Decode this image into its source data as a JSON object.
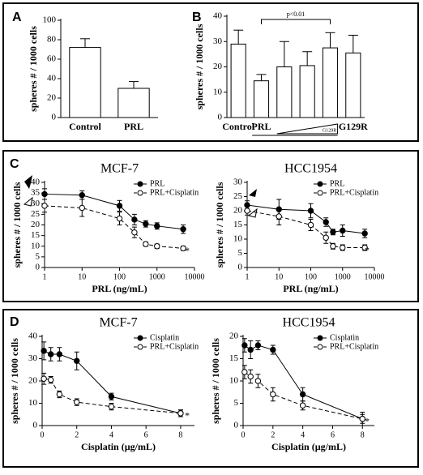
{
  "chart_data": [
    {
      "type": "bar",
      "panel": "A",
      "ylabel": "spheres # / 1000 cells",
      "categories": [
        "Control",
        "PRL"
      ],
      "values": [
        72,
        30
      ],
      "errors": [
        9,
        7
      ],
      "color": "#ffffff",
      "ylim": [
        0,
        100
      ],
      "yticks": [
        0,
        20,
        40,
        60,
        80,
        100
      ]
    },
    {
      "type": "bar",
      "panel": "B",
      "ylabel": "spheres # / 1000 cells",
      "categories": [
        "Control",
        "PRL",
        null,
        null,
        null,
        "G129R"
      ],
      "values": [
        29,
        14.5,
        20,
        20.5,
        27.5,
        25.5
      ],
      "errors": [
        5.5,
        2.5,
        10,
        5.5,
        6,
        7
      ],
      "color": "#ffffff",
      "ylim": [
        0,
        40
      ],
      "yticks": [
        0,
        10,
        20,
        30,
        40
      ],
      "annotation": "p<0.01",
      "gradient_label": "G129R"
    },
    {
      "type": "line",
      "panel": "C",
      "title": "MCF-7",
      "ylabel": "spheres # / 1000 cells",
      "xlabel": "PRL (ng/mL)",
      "log_x": true,
      "x": [
        1,
        10,
        100,
        250,
        500,
        1000,
        5000
      ],
      "series": [
        {
          "name": "PRL",
          "color": "#000000",
          "marker": "filled",
          "dashed": false,
          "values": [
            34.5,
            34,
            29,
            22.5,
            20.5,
            19.5,
            18
          ],
          "errors": [
            2.5,
            2,
            2.5,
            2.5,
            1.5,
            1.5,
            2
          ]
        },
        {
          "name": "PRL+Cisplatin",
          "color": "#000000",
          "marker": "open",
          "dashed": true,
          "values": [
            29,
            28,
            23,
            16.5,
            11,
            10,
            9
          ],
          "errors": [
            3,
            4,
            3,
            2.5,
            1,
            1,
            1
          ]
        }
      ],
      "xlim": [
        1,
        10000
      ],
      "xticks": [
        1,
        10,
        100,
        1000,
        10000
      ],
      "ylim": [
        0,
        40
      ],
      "yticks": [
        0,
        5,
        10,
        15,
        20,
        25,
        30,
        35,
        40
      ],
      "annotation": "*"
    },
    {
      "type": "line",
      "title": "HCC1954",
      "ylabel": "spheres # / 1000 cells",
      "xlabel": "PRL (ng/mL)",
      "log_x": true,
      "x": [
        1,
        10,
        100,
        300,
        500,
        1000,
        5000
      ],
      "series": [
        {
          "name": "PRL",
          "color": "#000000",
          "marker": "filled",
          "dashed": false,
          "values": [
            22,
            20.5,
            20,
            16,
            12.5,
            13,
            12
          ],
          "errors": [
            1.5,
            3.5,
            2.5,
            1.5,
            1,
            2,
            1.5
          ]
        },
        {
          "name": "PRL+Cisplatin",
          "color": "#000000",
          "marker": "open",
          "dashed": true,
          "values": [
            20,
            18,
            15,
            10.5,
            7.5,
            7,
            7
          ],
          "errors": [
            1.5,
            3,
            2,
            2,
            1,
            1,
            1
          ]
        }
      ],
      "xlim": [
        1,
        10000
      ],
      "xticks": [
        1,
        10,
        100,
        1000,
        10000
      ],
      "ylim": [
        0,
        30
      ],
      "yticks": [
        0,
        5,
        10,
        15,
        20,
        25,
        30
      ],
      "annotation": "*"
    },
    {
      "type": "line",
      "panel": "D",
      "title": "MCF-7",
      "ylabel": "spheres # / 1000 cells",
      "xlabel": "Cisplatin (µg/mL)",
      "log_x": false,
      "x": [
        0.1,
        0.5,
        1,
        2,
        4,
        8
      ],
      "series": [
        {
          "name": "Cisplatin",
          "color": "#000000",
          "marker": "filled",
          "dashed": false,
          "values": [
            33.5,
            32,
            32,
            29,
            13,
            5.5
          ],
          "errors": [
            4,
            3,
            3,
            4,
            1.5,
            1.5
          ]
        },
        {
          "name": "PRL+Cisplatin",
          "color": "#000000",
          "marker": "open",
          "dashed": true,
          "values": [
            21,
            20.5,
            14,
            10.5,
            8.5,
            5.5
          ],
          "errors": [
            2.5,
            1.5,
            1.5,
            1.5,
            1.5,
            1.5
          ]
        }
      ],
      "xlim": [
        0,
        8.8
      ],
      "xticks": [
        0,
        2,
        4,
        6,
        8
      ],
      "ylim": [
        0,
        40
      ],
      "yticks": [
        0,
        10,
        20,
        30,
        40
      ],
      "annotation": "*"
    },
    {
      "type": "line",
      "title": "HCC1954",
      "ylabel": "spheres # / 1000 cells",
      "xlabel": "Cisplatin (µg/mL)",
      "log_x": false,
      "x": [
        0.1,
        0.5,
        1,
        2,
        4,
        8
      ],
      "series": [
        {
          "name": "Cisplatin",
          "color": "#000000",
          "marker": "filled",
          "dashed": false,
          "values": [
            18,
            17,
            18,
            17,
            7,
            1.5
          ],
          "errors": [
            1.5,
            2,
            1,
            1,
            1.5,
            1.5
          ]
        },
        {
          "name": "PRL+Cisplatin",
          "color": "#000000",
          "marker": "open",
          "dashed": true,
          "values": [
            12,
            11,
            10,
            7,
            4.5,
            1.5
          ],
          "errors": [
            1.5,
            1.5,
            1.5,
            1.5,
            1,
            1
          ]
        }
      ],
      "xlim": [
        0,
        8.8
      ],
      "xticks": [
        0,
        2,
        4,
        6,
        8
      ],
      "ylim": [
        0,
        20
      ],
      "yticks": [
        0,
        5,
        10,
        15,
        20
      ],
      "annotation": "*"
    }
  ]
}
